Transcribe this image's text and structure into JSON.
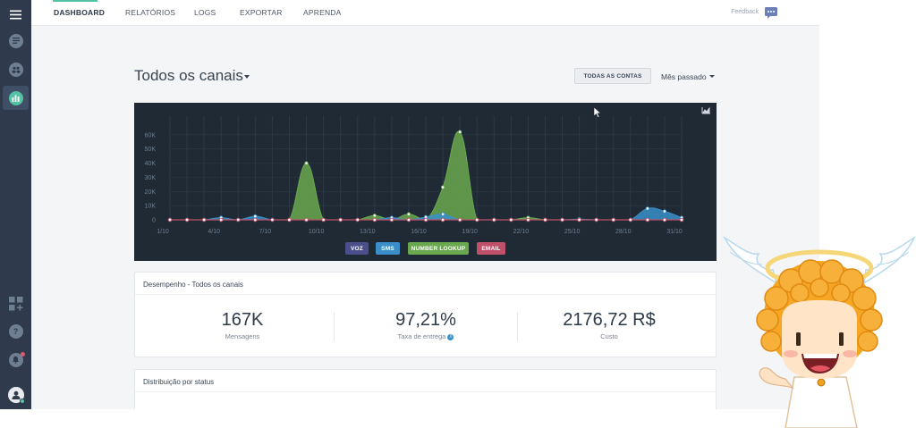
{
  "nav": {
    "items": [
      "DASHBOARD",
      "RELATÓRIOS",
      "LOGS",
      "EXPORTAR",
      "APRENDA"
    ],
    "feedback": "Feedback"
  },
  "header": {
    "title": "Todos os canais",
    "accounts_button": "TODAS AS CONTAS",
    "period": "Mês passado"
  },
  "chart_data": {
    "type": "area",
    "x": [
      "1/10",
      "2/10",
      "3/10",
      "4/10",
      "5/10",
      "6/10",
      "7/10",
      "8/10",
      "9/10",
      "10/10",
      "11/10",
      "12/10",
      "13/10",
      "14/10",
      "15/10",
      "16/10",
      "17/10",
      "18/10",
      "19/10",
      "20/10",
      "21/10",
      "22/10",
      "23/10",
      "24/10",
      "25/10",
      "26/10",
      "27/10",
      "28/10",
      "29/10",
      "30/10",
      "31/10"
    ],
    "xticks": [
      "1/10",
      "4/10",
      "7/10",
      "10/10",
      "13/10",
      "16/10",
      "19/10",
      "22/10",
      "25/10",
      "28/10",
      "31/10"
    ],
    "yticks": [
      "0",
      "10K",
      "20K",
      "30K",
      "40K",
      "50K",
      "60K"
    ],
    "ylim": [
      0,
      70000
    ],
    "series": [
      {
        "name": "VOZ",
        "color": "#4a4e8a",
        "values": [
          0,
          0,
          0,
          0,
          0,
          0,
          0,
          0,
          0,
          0,
          0,
          0,
          0,
          0,
          0,
          0,
          0,
          0,
          0,
          0,
          0,
          0,
          0,
          0,
          0,
          0,
          0,
          0,
          0,
          0,
          0
        ]
      },
      {
        "name": "SMS",
        "color": "#3a8fc8",
        "values": [
          0,
          0,
          0,
          1500,
          0,
          2500,
          0,
          0,
          0,
          0,
          0,
          0,
          0,
          1500,
          0,
          2000,
          4000,
          0,
          0,
          0,
          0,
          0,
          0,
          0,
          500,
          0,
          0,
          0,
          8000,
          6000,
          1500
        ]
      },
      {
        "name": "NUMBER LOOKUP",
        "color": "#6aa84f",
        "values": [
          0,
          0,
          0,
          0,
          0,
          0,
          0,
          0,
          40000,
          0,
          0,
          0,
          3000,
          0,
          4000,
          0,
          23000,
          62000,
          0,
          0,
          0,
          1500,
          0,
          0,
          0,
          0,
          0,
          0,
          0,
          0,
          0
        ]
      },
      {
        "name": "EMAIL",
        "color": "#c0506a",
        "values": [
          0,
          0,
          0,
          0,
          0,
          0,
          0,
          0,
          0,
          0,
          0,
          0,
          0,
          0,
          0,
          0,
          0,
          0,
          0,
          0,
          0,
          0,
          0,
          0,
          0,
          0,
          0,
          0,
          0,
          0,
          0
        ]
      }
    ]
  },
  "performance": {
    "title": "Desempenho - Todos os canais",
    "metrics": [
      {
        "value": "167K",
        "label": "Mensagens"
      },
      {
        "value": "97,21%",
        "label": "Taxa de entrega"
      },
      {
        "value": "2176,72 R$",
        "label": "Custo"
      }
    ]
  },
  "status": {
    "title": "Distribuição por status"
  },
  "colors": {
    "sidebar": "#2f3b4c",
    "accent": "#56c2a4",
    "chart_bg": "#1f2a35"
  }
}
